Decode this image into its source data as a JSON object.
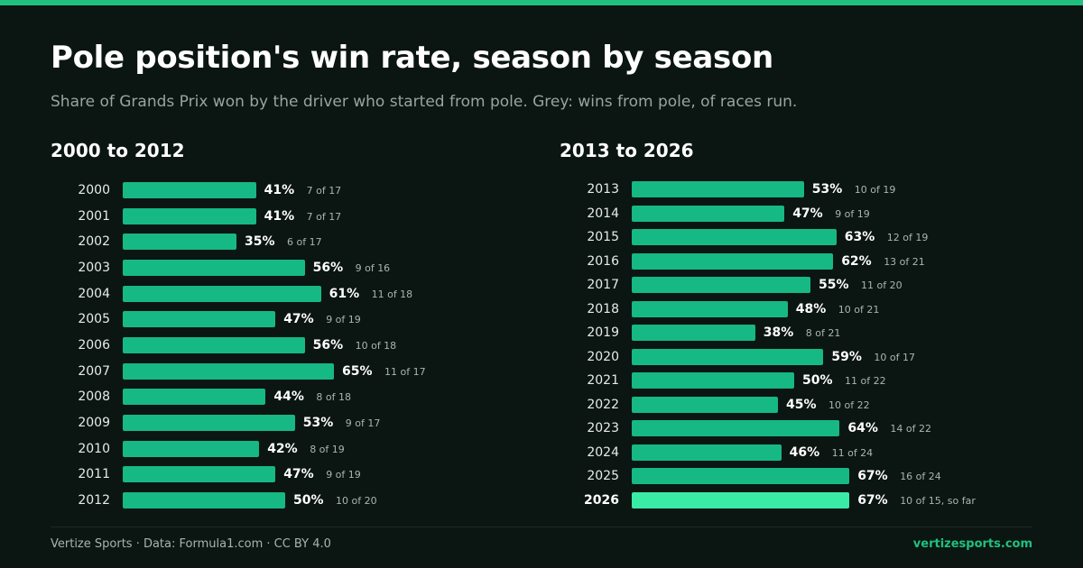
{
  "title": "Pole position's win rate, season by season",
  "subtitle": "Share of Grands Prix won by the driver who started from pole. Grey: wins from pole, of races run.",
  "colors": {
    "accent": "#20c080",
    "bar": "#16b884",
    "bar_highlight": "#3aeba6",
    "background": "#0b1512"
  },
  "footer": {
    "credit": "Vertize Sports · Data: Formula1.com · CC BY 4.0",
    "site": "vertizesports.com"
  },
  "chart_data": [
    {
      "type": "bar",
      "orientation": "horizontal",
      "title": "2000 to 2012",
      "xlim": [
        0,
        100
      ],
      "categories": [
        "2000",
        "2001",
        "2002",
        "2003",
        "2004",
        "2005",
        "2006",
        "2007",
        "2008",
        "2009",
        "2010",
        "2011",
        "2012"
      ],
      "values": [
        41,
        41,
        35,
        56,
        61,
        47,
        56,
        65,
        44,
        53,
        42,
        47,
        50
      ],
      "value_labels": [
        "41%",
        "41%",
        "35%",
        "56%",
        "61%",
        "47%",
        "56%",
        "65%",
        "44%",
        "53%",
        "42%",
        "47%",
        "50%"
      ],
      "annotations": [
        "7 of 17",
        "7 of 17",
        "6 of 17",
        "9 of 16",
        "11 of 18",
        "9 of 19",
        "10 of 18",
        "11 of 17",
        "8 of 18",
        "9 of 17",
        "8 of 19",
        "9 of 19",
        "10 of 20"
      ],
      "highlight": []
    },
    {
      "type": "bar",
      "orientation": "horizontal",
      "title": "2013 to 2026",
      "xlim": [
        0,
        100
      ],
      "categories": [
        "2013",
        "2014",
        "2015",
        "2016",
        "2017",
        "2018",
        "2019",
        "2020",
        "2021",
        "2022",
        "2023",
        "2024",
        "2025",
        "2026"
      ],
      "values": [
        53,
        47,
        63,
        62,
        55,
        48,
        38,
        59,
        50,
        45,
        64,
        46,
        67,
        67
      ],
      "value_labels": [
        "53%",
        "47%",
        "63%",
        "62%",
        "55%",
        "48%",
        "38%",
        "59%",
        "50%",
        "45%",
        "64%",
        "46%",
        "67%",
        "67%"
      ],
      "annotations": [
        "10 of 19",
        "9 of 19",
        "12 of 19",
        "13 of 21",
        "11 of 20",
        "10 of 21",
        "8 of 21",
        "10 of 17",
        "11 of 22",
        "10 of 22",
        "14 of 22",
        "11 of 24",
        "16 of 24",
        "10 of 15, so far"
      ],
      "highlight": [
        "2026"
      ]
    }
  ]
}
